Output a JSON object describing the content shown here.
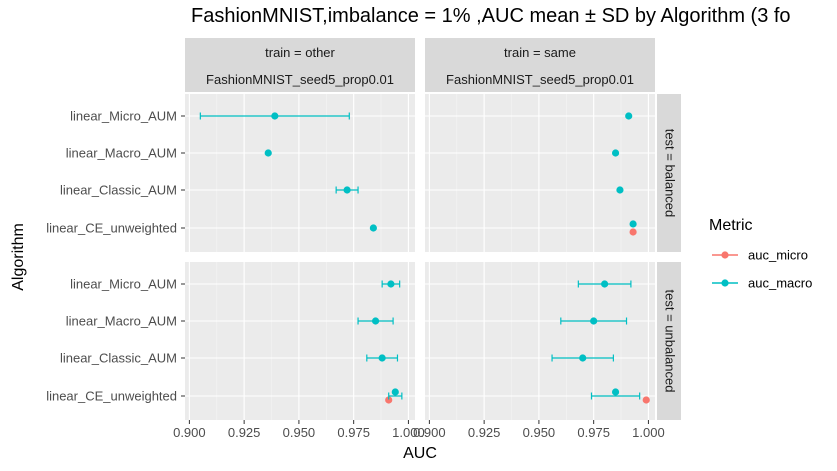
{
  "chart_data": {
    "type": "scatter",
    "title": "FashionMNIST,imbalance = 1% ,AUC mean ± SD by Algorithm (3 fo",
    "xlabel": "AUC",
    "ylabel": "Algorithm",
    "xlim": [
      0.898,
      1.003
    ],
    "x_ticks": [
      "0.900",
      "0.925",
      "0.950",
      "0.975",
      "1.000"
    ],
    "x_tick_values": [
      0.9,
      0.925,
      0.95,
      0.975,
      1.0
    ],
    "categories": [
      "linear_Micro_AUM",
      "linear_Macro_AUM",
      "linear_Classic_AUM",
      "linear_CE_unweighted"
    ],
    "grid": true,
    "legend": {
      "title": "Metric",
      "position": "right",
      "entries": [
        {
          "name": "auc_micro",
          "color": "#F8766D"
        },
        {
          "name": "auc_macro",
          "color": "#00BFC4"
        }
      ]
    },
    "col_strips": [
      {
        "line1": "train = other",
        "line2": "FashionMNIST_seed5_prop0.01"
      },
      {
        "line1": "train = same",
        "line2": "FashionMNIST_seed5_prop0.01"
      }
    ],
    "row_strips": [
      "test = balanced",
      "test = unbalanced"
    ],
    "panels": [
      {
        "row": 0,
        "col": 0,
        "points": [
          {
            "category": "linear_Micro_AUM",
            "metric": "auc_macro",
            "mean": 0.939,
            "sd": 0.034
          },
          {
            "category": "linear_Macro_AUM",
            "metric": "auc_macro",
            "mean": 0.936,
            "sd": 0
          },
          {
            "category": "linear_Classic_AUM",
            "metric": "auc_macro",
            "mean": 0.972,
            "sd": 0.005
          },
          {
            "category": "linear_CE_unweighted",
            "metric": "auc_macro",
            "mean": 0.984,
            "sd": 0
          }
        ]
      },
      {
        "row": 0,
        "col": 1,
        "points": [
          {
            "category": "linear_Micro_AUM",
            "metric": "auc_macro",
            "mean": 0.991,
            "sd": 0
          },
          {
            "category": "linear_Macro_AUM",
            "metric": "auc_macro",
            "mean": 0.985,
            "sd": 0
          },
          {
            "category": "linear_Classic_AUM",
            "metric": "auc_macro",
            "mean": 0.987,
            "sd": 0
          },
          {
            "category": "linear_CE_unweighted",
            "metric": "auc_micro",
            "mean": 0.993,
            "sd": 0
          },
          {
            "category": "linear_CE_unweighted",
            "metric": "auc_macro",
            "mean": 0.993,
            "sd": 0
          }
        ]
      },
      {
        "row": 1,
        "col": 0,
        "points": [
          {
            "category": "linear_Micro_AUM",
            "metric": "auc_macro",
            "mean": 0.992,
            "sd": 0.004
          },
          {
            "category": "linear_Macro_AUM",
            "metric": "auc_macro",
            "mean": 0.985,
            "sd": 0.008
          },
          {
            "category": "linear_Classic_AUM",
            "metric": "auc_macro",
            "mean": 0.988,
            "sd": 0.007
          },
          {
            "category": "linear_CE_unweighted",
            "metric": "auc_micro",
            "mean": 0.991,
            "sd": 0
          },
          {
            "category": "linear_CE_unweighted",
            "metric": "auc_macro",
            "mean": 0.994,
            "sd": 0.003
          }
        ]
      },
      {
        "row": 1,
        "col": 1,
        "points": [
          {
            "category": "linear_Micro_AUM",
            "metric": "auc_macro",
            "mean": 0.98,
            "sd": 0.012
          },
          {
            "category": "linear_Macro_AUM",
            "metric": "auc_macro",
            "mean": 0.975,
            "sd": 0.015
          },
          {
            "category": "linear_Classic_AUM",
            "metric": "auc_macro",
            "mean": 0.97,
            "sd": 0.014
          },
          {
            "category": "linear_CE_unweighted",
            "metric": "auc_micro",
            "mean": 0.999,
            "sd": 0
          },
          {
            "category": "linear_CE_unweighted",
            "metric": "auc_macro",
            "mean": 0.985,
            "sd": 0.011
          }
        ]
      }
    ]
  }
}
